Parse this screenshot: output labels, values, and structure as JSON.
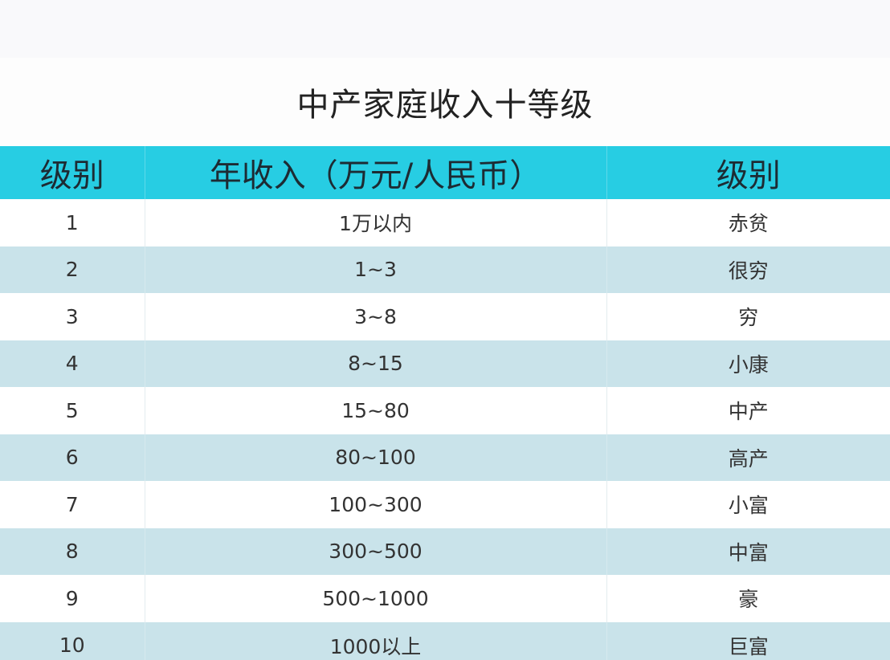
{
  "title": "中产家庭收入十等级",
  "table": {
    "headers": [
      "级别",
      "年收入（万元/人民币）",
      "级别"
    ],
    "rows": [
      [
        "1",
        "1万以内",
        "赤贫"
      ],
      [
        "2",
        "1~3",
        "很穷"
      ],
      [
        "3",
        "3~8",
        "穷"
      ],
      [
        "4",
        "8~15",
        "小康"
      ],
      [
        "5",
        "15~80",
        "中产"
      ],
      [
        "6",
        "80~100",
        "高产"
      ],
      [
        "7",
        "100~300",
        "小富"
      ],
      [
        "8",
        "300~500",
        "中富"
      ],
      [
        "9",
        "500~1000",
        "豪"
      ],
      [
        "10",
        "1000以上",
        "巨富"
      ]
    ]
  },
  "colors": {
    "header_bg": "#27cde3",
    "stripe_bg": "#c9e3ea"
  }
}
